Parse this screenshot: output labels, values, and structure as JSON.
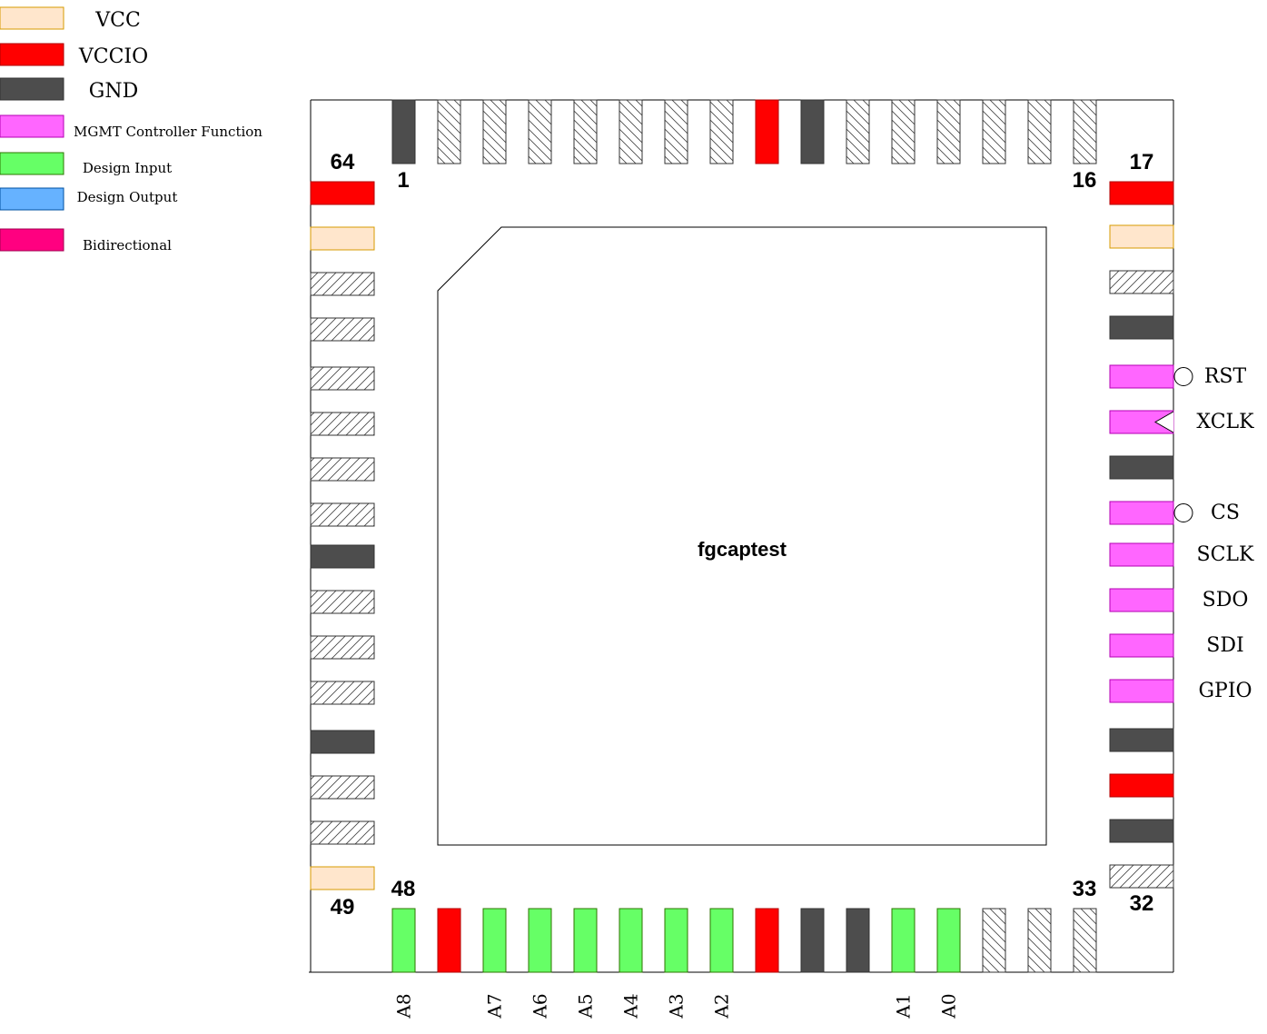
{
  "colors": {
    "VCC": {
      "fill": "#ffe6cc",
      "stroke": "#d79b00"
    },
    "VCCIO": {
      "fill": "#ff0000",
      "stroke": "#b20000"
    },
    "GND": {
      "fill": "#4d4d4d",
      "stroke": "#333333"
    },
    "MGMT": {
      "fill": "#ff66ff",
      "stroke": "#b300b3"
    },
    "DIN": {
      "fill": "#66ff66",
      "stroke": "#2d7600"
    },
    "DOUT": {
      "fill": "#66b2ff",
      "stroke": "#0050a0"
    },
    "BIDIR": {
      "fill": "#ff0080",
      "stroke": "#a00050"
    },
    "NC": {
      "fill": "#ffffff",
      "stroke": "#333333"
    }
  },
  "legend": [
    {
      "label": "VCC",
      "type": "VCC"
    },
    {
      "label": "VCCIO",
      "type": "VCCIO"
    },
    {
      "label": "GND",
      "type": "GND"
    },
    {
      "label": "MGMT Controller Function",
      "type": "MGMT"
    },
    {
      "label": "Design Input",
      "type": "DIN"
    },
    {
      "label": "Design Output",
      "type": "DOUT"
    },
    {
      "label": "Bidirectional",
      "type": "BIDIR"
    }
  ],
  "chip": {
    "name": "fgcaptest"
  },
  "corner_numbers": {
    "pin1": "1",
    "pin16": "16",
    "pin17": "17",
    "pin32": "32",
    "pin33": "33",
    "pin48": "48",
    "pin49": "49",
    "pin64": "64"
  },
  "pins": {
    "top": [
      "GND",
      "NC",
      "NC",
      "NC",
      "NC",
      "NC",
      "NC",
      "NC",
      "VCCIO",
      "GND",
      "NC",
      "NC",
      "NC",
      "NC",
      "NC",
      "NC"
    ],
    "right": [
      {
        "type": "VCCIO",
        "label": ""
      },
      {
        "type": "VCC",
        "label": ""
      },
      {
        "type": "NC",
        "label": ""
      },
      {
        "type": "GND",
        "label": ""
      },
      {
        "type": "MGMT",
        "label": "RST",
        "marker": "bubble"
      },
      {
        "type": "MGMT",
        "label": "XCLK",
        "marker": "clock"
      },
      {
        "type": "GND",
        "label": ""
      },
      {
        "type": "MGMT",
        "label": "CS",
        "marker": "bubble"
      },
      {
        "type": "MGMT",
        "label": "SCLK"
      },
      {
        "type": "MGMT",
        "label": "SDO"
      },
      {
        "type": "MGMT",
        "label": "SDI"
      },
      {
        "type": "MGMT",
        "label": "GPIO"
      },
      {
        "type": "GND",
        "label": ""
      },
      {
        "type": "VCCIO",
        "label": ""
      },
      {
        "type": "GND",
        "label": ""
      },
      {
        "type": "NC",
        "label": ""
      }
    ],
    "bottom": [
      {
        "type": "DIN",
        "label": "A8"
      },
      {
        "type": "VCCIO",
        "label": ""
      },
      {
        "type": "DIN",
        "label": "A7"
      },
      {
        "type": "DIN",
        "label": "A6"
      },
      {
        "type": "DIN",
        "label": "A5"
      },
      {
        "type": "DIN",
        "label": "A4"
      },
      {
        "type": "DIN",
        "label": "A3"
      },
      {
        "type": "DIN",
        "label": "A2"
      },
      {
        "type": "VCCIO",
        "label": ""
      },
      {
        "type": "GND",
        "label": ""
      },
      {
        "type": "GND",
        "label": ""
      },
      {
        "type": "DIN",
        "label": "A1"
      },
      {
        "type": "DIN",
        "label": "A0"
      },
      {
        "type": "NC",
        "label": ""
      },
      {
        "type": "NC",
        "label": ""
      },
      {
        "type": "NC",
        "label": ""
      }
    ],
    "left": [
      "VCCIO",
      "VCC",
      "NC",
      "NC",
      "NC",
      "NC",
      "NC",
      "NC",
      "GND",
      "NC",
      "NC",
      "NC",
      "GND",
      "NC",
      "NC",
      "VCC"
    ]
  }
}
